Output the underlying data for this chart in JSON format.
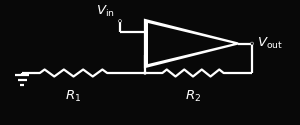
{
  "bg_color": "#080808",
  "fg_color": "#ffffff",
  "vin_label": "$V_{\\mathrm{in}}$",
  "vout_label": "$V_{\\mathrm{out}}$",
  "r1_label": "$R_1$",
  "r2_label": "$R_2$",
  "figsize": [
    3.0,
    1.25
  ],
  "dpi": 100,
  "lw": 1.6,
  "res_amp": 0.028,
  "res_segs": 7,
  "dot_r": 0.008
}
